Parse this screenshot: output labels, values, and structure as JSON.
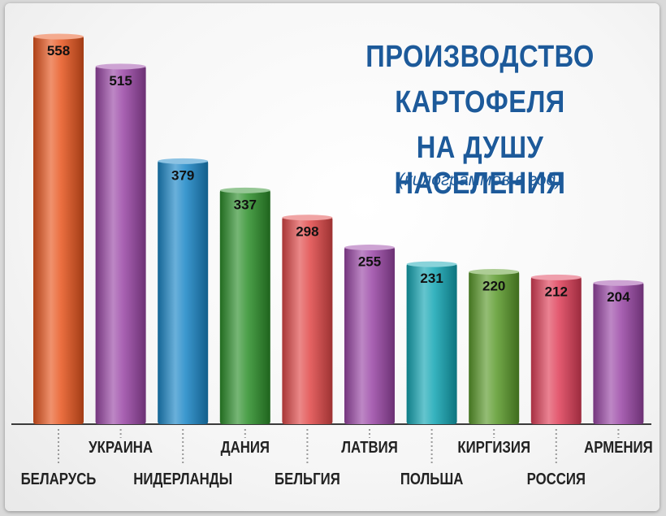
{
  "title_lines": [
    "ПРОИЗВОДСТВО",
    "КАРТОФЕЛЯ",
    "НА ДУШУ НАСЕЛЕНИЯ"
  ],
  "subtitle": "(килограммов в год)",
  "colors": {
    "orange": "#e8561e",
    "purple": "#9a46a6",
    "blue": "#1a86c6",
    "green": "#2c8f2a",
    "red": "#e04848",
    "teal": "#12a6b4",
    "olive": "#5a9a2a",
    "crimson": "#df3e58",
    "title": "#1d5a9a"
  },
  "chart_data": {
    "type": "bar",
    "categories": [
      "БЕЛАРУСЬ",
      "УКРАИНА",
      "НИДЕРЛАНДЫ",
      "ДАНИЯ",
      "БЕЛЬГИЯ",
      "ЛАТВИЯ",
      "ПОЛЬША",
      "КИРГИЗИЯ",
      "РОССИЯ",
      "АРМЕНИЯ"
    ],
    "values": [
      558,
      515,
      379,
      337,
      298,
      255,
      231,
      220,
      212,
      204
    ],
    "bar_colors": [
      "orange",
      "purple",
      "blue",
      "green",
      "red",
      "purple",
      "teal",
      "olive",
      "crimson",
      "purple"
    ],
    "label_row": [
      "lower",
      "upper",
      "lower",
      "upper",
      "lower",
      "upper",
      "lower",
      "upper",
      "lower",
      "upper"
    ],
    "ylim": [
      0,
      558
    ],
    "title": "ПРОИЗВОДСТВО КАРТОФЕЛЯ НА ДУШУ НАСЕЛЕНИЯ",
    "subtitle": "(килограммов в год)",
    "grid": false,
    "legend": "none"
  }
}
